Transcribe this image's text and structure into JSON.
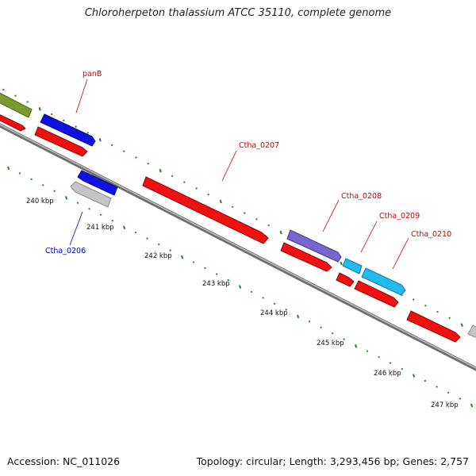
{
  "title": "Chloroherpeton thalassium ATCC 35110, complete genome",
  "footer": {
    "accession": "Accession: NC_011026",
    "summary": "Topology: circular; Length: 3,293,456 bp; Genes: 2,757"
  },
  "colors": {
    "backbone": "#8a8a8a",
    "tick": "#1a8a1a",
    "label_red": "#cc0000",
    "label_blue": "#0000bb"
  },
  "scale_labels": [
    "240 kbp",
    "241 kbp",
    "242 kbp",
    "243 kbp",
    "244 kbp",
    "245 kbp",
    "246 kbp",
    "247 kbp"
  ],
  "genes": [
    {
      "id": "g-olive",
      "label": "",
      "strand": "+",
      "ring": "outer",
      "color": "#7a9a30"
    },
    {
      "id": "g-red-left",
      "label": "",
      "strand": "+",
      "ring": "inner",
      "color": "#ee1111"
    },
    {
      "id": "g-panB",
      "label": "panB",
      "strand": "+",
      "ring": "outer",
      "color": "#1111dd"
    },
    {
      "id": "g-red-panB",
      "label": "",
      "strand": "+",
      "ring": "inner",
      "color": "#ee1111"
    },
    {
      "id": "g-Ctha_0206",
      "label": "Ctha_0206",
      "strand": "-",
      "ring": "neg-outer",
      "color": "#1111dd"
    },
    {
      "id": "g-grey-0206",
      "label": "",
      "strand": "-",
      "ring": "neg-inner",
      "color": "#c0c0c0"
    },
    {
      "id": "g-Ctha_0207",
      "label": "Ctha_0207",
      "strand": "+",
      "ring": "inner",
      "color": "#ee1111"
    },
    {
      "id": "g-Ctha_0208",
      "label": "Ctha_0208",
      "strand": "+",
      "ring": "outer",
      "color": "#7766cc"
    },
    {
      "id": "g-red-0208",
      "label": "",
      "strand": "+",
      "ring": "inner",
      "color": "#ee1111"
    },
    {
      "id": "g-cyan-small",
      "label": "",
      "strand": "+",
      "ring": "outer",
      "color": "#22bbee"
    },
    {
      "id": "g-red-small",
      "label": "",
      "strand": "+",
      "ring": "inner",
      "color": "#ee1111"
    },
    {
      "id": "g-Ctha_0209",
      "label": "Ctha_0209",
      "strand": "+",
      "ring": "outer",
      "color": "#22bbee"
    },
    {
      "id": "g-Ctha_0210",
      "label": "Ctha_0210",
      "strand": "+",
      "ring": "inner",
      "color": "#ee1111"
    },
    {
      "id": "g-red-right",
      "label": "",
      "strand": "+",
      "ring": "inner",
      "color": "#ee1111"
    },
    {
      "id": "g-grey-right",
      "label": "",
      "strand": "+",
      "ring": "outer",
      "color": "#c0c0c0"
    }
  ]
}
